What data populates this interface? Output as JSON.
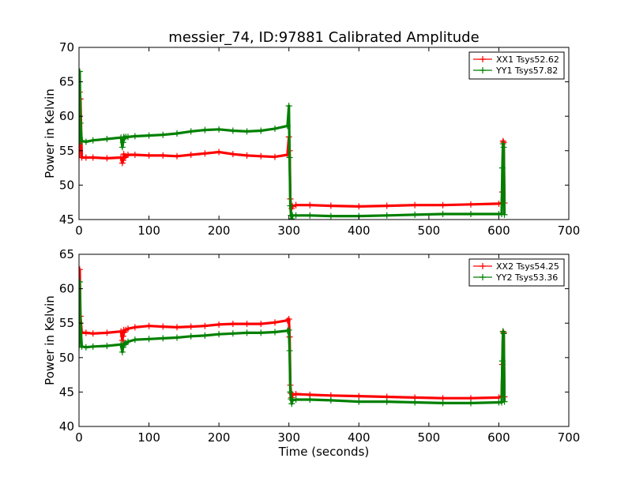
{
  "title": "messier_74, ID:97881 Calibrated Amplitude",
  "chart_data": [
    {
      "type": "line",
      "title": "",
      "xlabel": "",
      "ylabel": "Power in Kelvin",
      "xlim": [
        0,
        700
      ],
      "ylim": [
        45,
        70
      ],
      "xticks": [
        "0",
        "100",
        "200",
        "300",
        "400",
        "500",
        "600",
        "700"
      ],
      "yticks": [
        "45",
        "50",
        "55",
        "60",
        "65",
        "70"
      ],
      "legend_position": "top-right",
      "grid": false,
      "series": [
        {
          "name": "XX1 Tsys52.62",
          "color": "#ff0000",
          "x": [
            0,
            1,
            2,
            4,
            10,
            20,
            40,
            60,
            62,
            63,
            64,
            65,
            67,
            70,
            80,
            100,
            120,
            140,
            160,
            180,
            200,
            220,
            240,
            260,
            280,
            298,
            300,
            301,
            302,
            303,
            304,
            305,
            310,
            330,
            360,
            400,
            440,
            480,
            520,
            560,
            600,
            604,
            605,
            606,
            607,
            608
          ],
          "y": [
            54,
            63.5,
            62.5,
            54,
            54,
            54,
            53.9,
            54,
            53.2,
            53.6,
            54.5,
            54,
            54.2,
            54.4,
            54.4,
            54.3,
            54.3,
            54.2,
            54.4,
            54.6,
            54.8,
            54.5,
            54.3,
            54.2,
            54.1,
            54.4,
            57,
            55,
            48,
            47,
            46.6,
            46.9,
            47.1,
            47.1,
            47.0,
            46.9,
            47.0,
            47.1,
            47.1,
            47.2,
            47.3,
            47.4,
            49,
            56.4,
            56.2,
            47.4
          ]
        },
        {
          "name": "YY1 Tsys57.82",
          "color": "#008000",
          "x": [
            0,
            1,
            2,
            4,
            10,
            20,
            40,
            60,
            62,
            63,
            64,
            65,
            67,
            70,
            80,
            100,
            120,
            140,
            160,
            180,
            200,
            220,
            240,
            260,
            280,
            298,
            300,
            301,
            302,
            303,
            304,
            305,
            310,
            330,
            360,
            400,
            440,
            480,
            520,
            560,
            600,
            604,
            605,
            606,
            607,
            608
          ],
          "y": [
            56,
            66.5,
            59,
            56.4,
            56.3,
            56.5,
            56.7,
            56.9,
            55.5,
            56.2,
            57,
            56.8,
            57,
            57,
            57.1,
            57.2,
            57.3,
            57.5,
            57.8,
            58,
            58.1,
            57.9,
            57.8,
            57.9,
            58.2,
            58.6,
            61.5,
            54,
            47,
            45.6,
            45.1,
            45.6,
            45.6,
            45.6,
            45.5,
            45.5,
            45.6,
            45.7,
            45.8,
            45.8,
            45.8,
            45.8,
            52.5,
            56,
            55.5,
            45.7
          ]
        }
      ]
    },
    {
      "type": "line",
      "title": "",
      "xlabel": "Time (seconds)",
      "ylabel": "Power in Kelvin",
      "xlim": [
        0,
        700
      ],
      "ylim": [
        40,
        65
      ],
      "xticks": [
        "0",
        "100",
        "200",
        "300",
        "400",
        "500",
        "600",
        "700"
      ],
      "yticks": [
        "40",
        "45",
        "50",
        "55",
        "60",
        "65"
      ],
      "legend_position": "top-right",
      "grid": false,
      "series": [
        {
          "name": "XX2 Tsys54.25",
          "color": "#ff0000",
          "x": [
            0,
            1,
            2,
            4,
            10,
            20,
            40,
            60,
            62,
            63,
            64,
            65,
            67,
            70,
            80,
            100,
            120,
            140,
            160,
            180,
            200,
            220,
            240,
            260,
            280,
            298,
            300,
            301,
            302,
            303,
            304,
            305,
            310,
            330,
            360,
            400,
            440,
            480,
            520,
            560,
            600,
            604,
            605,
            606,
            607,
            608
          ],
          "y": [
            53.5,
            62.8,
            56,
            53.6,
            53.6,
            53.5,
            53.6,
            53.8,
            52.5,
            53.1,
            54,
            53.7,
            54,
            54.2,
            54.4,
            54.6,
            54.5,
            54.4,
            54.5,
            54.6,
            54.8,
            54.9,
            54.9,
            54.9,
            55.1,
            55.4,
            55.6,
            53,
            46,
            44.8,
            44.2,
            44.6,
            44.7,
            44.6,
            44.5,
            44.4,
            44.3,
            44.2,
            44.1,
            44.1,
            44.2,
            44.4,
            49,
            53.8,
            53.6,
            44.3
          ]
        },
        {
          "name": "YY2 Tsys53.36",
          "color": "#008000",
          "x": [
            0,
            1,
            2,
            4,
            10,
            20,
            40,
            60,
            62,
            63,
            64,
            65,
            67,
            70,
            80,
            100,
            120,
            140,
            160,
            180,
            200,
            220,
            240,
            260,
            280,
            298,
            300,
            301,
            302,
            303,
            304,
            305,
            310,
            330,
            360,
            400,
            440,
            480,
            520,
            560,
            600,
            604,
            605,
            606,
            607,
            608
          ],
          "y": [
            51.5,
            61,
            55,
            51.6,
            51.5,
            51.6,
            51.7,
            51.9,
            50.8,
            51.5,
            52,
            51.9,
            52.1,
            52.3,
            52.6,
            52.7,
            52.8,
            52.9,
            53.1,
            53.2,
            53.4,
            53.5,
            53.6,
            53.6,
            53.7,
            53.9,
            54,
            51,
            45,
            44,
            43.3,
            43.8,
            43.9,
            43.9,
            43.8,
            43.6,
            43.6,
            43.5,
            43.4,
            43.4,
            43.5,
            43.5,
            49.5,
            53.8,
            53.5,
            43.6
          ]
        }
      ]
    }
  ]
}
